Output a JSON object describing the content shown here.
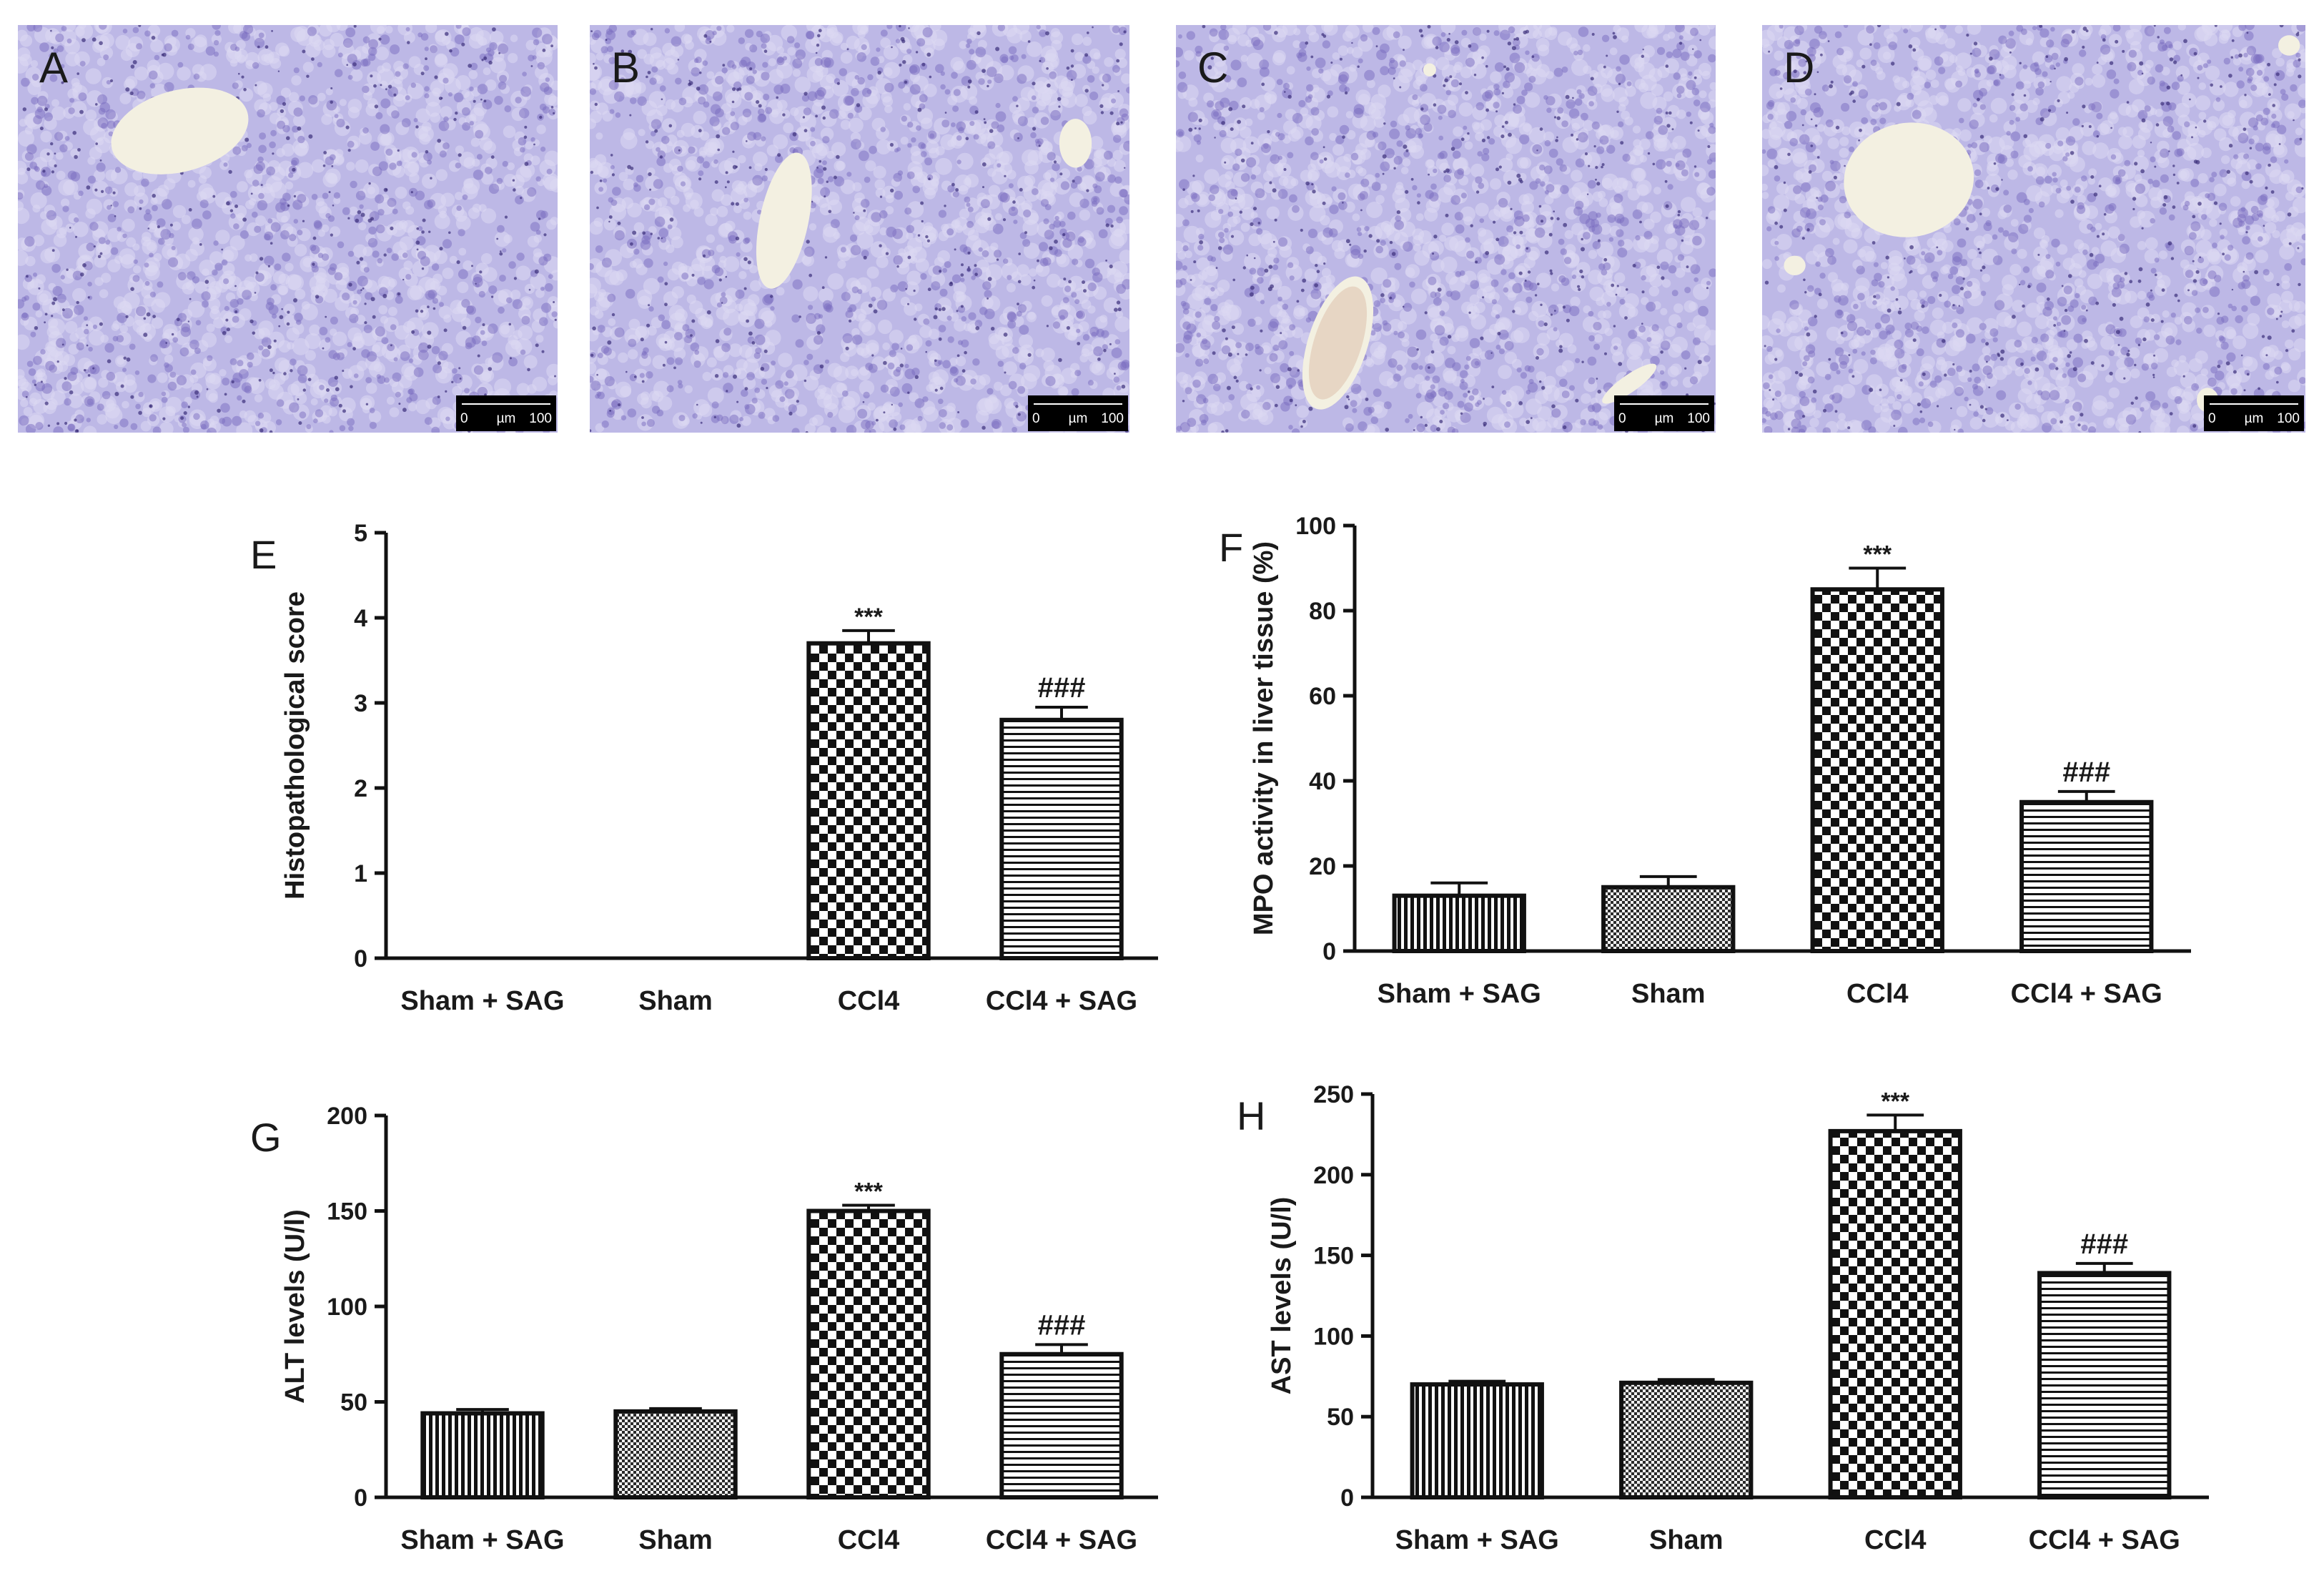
{
  "micrographs": [
    {
      "letter": "A",
      "scale": {
        "start": "0",
        "unit": "µm",
        "end": "100"
      }
    },
    {
      "letter": "B",
      "scale": {
        "start": "0",
        "unit": "µm",
        "end": "100"
      }
    },
    {
      "letter": "C",
      "scale": {
        "start": "0",
        "unit": "µm",
        "end": "100"
      }
    },
    {
      "letter": "D",
      "scale": {
        "start": "0",
        "unit": "µm",
        "end": "100"
      }
    }
  ],
  "colors": {
    "tissue": "#bdb8e6",
    "nucleus": "#7a6bc0",
    "vessel": "#f3f0e1",
    "bar_fill": "#ffffff",
    "bar_pattern": "#111111",
    "axis": "#111111"
  },
  "chart_data": [
    {
      "letter": "E",
      "type": "bar",
      "categories": [
        "Sham + SAG",
        "Sham",
        "CCl4",
        "CCl4 + SAG"
      ],
      "values": [
        0,
        0,
        3.7,
        2.8
      ],
      "errors": [
        0,
        0,
        0.15,
        0.15
      ],
      "annotations": [
        "",
        "",
        "***",
        "###"
      ],
      "patterns": [
        "vertical",
        "fine-check",
        "checker",
        "horizontal"
      ],
      "ylabel": "Histopathological score",
      "ylim": [
        0,
        5
      ],
      "yticks": [
        "0",
        "1",
        "2",
        "3",
        "4",
        "5"
      ],
      "grid": false
    },
    {
      "letter": "F",
      "type": "bar",
      "categories": [
        "Sham + SAG",
        "Sham",
        "CCl4",
        "CCl4 + SAG"
      ],
      "values": [
        13,
        15,
        85,
        35
      ],
      "errors": [
        3,
        2.5,
        5,
        2.5
      ],
      "annotations": [
        "",
        "",
        "***",
        "###"
      ],
      "patterns": [
        "vertical",
        "fine-check",
        "checker",
        "horizontal"
      ],
      "ylabel": "MPO activity in liver tissue (%)",
      "ylim": [
        0,
        100
      ],
      "yticks": [
        "0",
        "20",
        "40",
        "60",
        "80",
        "100"
      ],
      "grid": false
    },
    {
      "letter": "G",
      "type": "bar",
      "categories": [
        "Sham + SAG",
        "Sham",
        "CCl4",
        "CCl4 + SAG"
      ],
      "values": [
        44,
        45,
        150,
        75
      ],
      "errors": [
        2,
        1.5,
        3,
        5
      ],
      "annotations": [
        "",
        "",
        "***",
        "###"
      ],
      "patterns": [
        "vertical",
        "fine-check",
        "checker",
        "horizontal"
      ],
      "ylabel": "ALT levels (U/l)",
      "ylim": [
        0,
        200
      ],
      "yticks": [
        "0",
        "50",
        "100",
        "150",
        "200"
      ],
      "grid": false
    },
    {
      "letter": "H",
      "type": "bar",
      "categories": [
        "Sham + SAG",
        "Sham",
        "CCl4",
        "CCl4 + SAG"
      ],
      "values": [
        70,
        71,
        227,
        139
      ],
      "errors": [
        2,
        2,
        10,
        6
      ],
      "annotations": [
        "",
        "",
        "***",
        "###"
      ],
      "patterns": [
        "vertical",
        "fine-check",
        "checker",
        "horizontal"
      ],
      "ylabel": "AST levels (U/l)",
      "ylim": [
        0,
        250
      ],
      "yticks": [
        "0",
        "50",
        "100",
        "150",
        "200",
        "250"
      ],
      "grid": false
    }
  ]
}
